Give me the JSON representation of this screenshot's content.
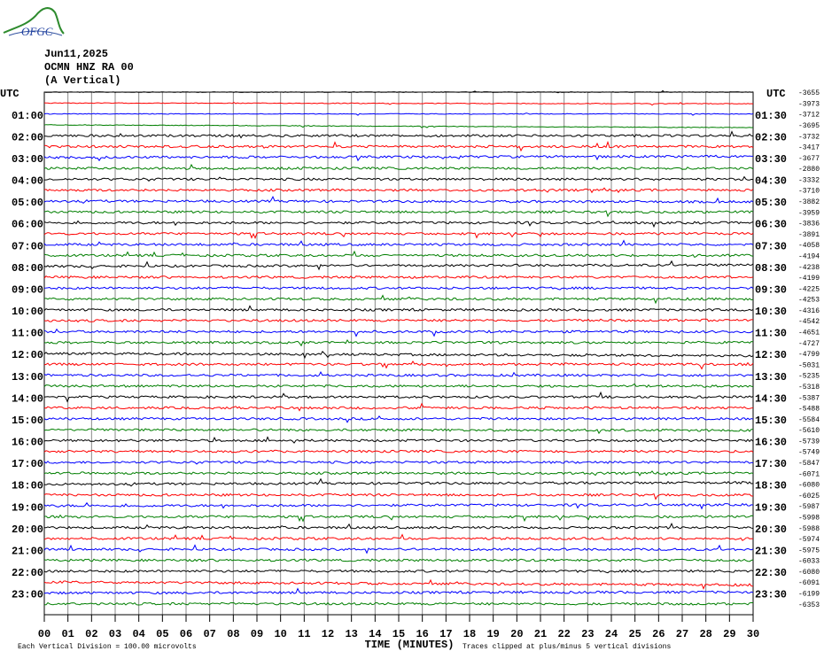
{
  "header": {
    "logo": "OFGC",
    "date": "Jun11,2025",
    "station": "OCMN HNZ RA 00",
    "component": "(A Vertical)"
  },
  "plot": {
    "utc_left": "UTC",
    "utc_right": "UTC",
    "left_labels": [
      "01:00",
      "02:00",
      "03:00",
      "04:00",
      "05:00",
      "06:00",
      "07:00",
      "08:00",
      "09:00",
      "10:00",
      "11:00",
      "12:00",
      "13:00",
      "14:00",
      "15:00",
      "16:00",
      "17:00",
      "18:00",
      "19:00",
      "20:00",
      "21:00",
      "22:00",
      "23:00"
    ],
    "right_labels": [
      "01:30",
      "02:30",
      "03:30",
      "04:30",
      "05:30",
      "06:30",
      "07:30",
      "08:30",
      "09:30",
      "10:30",
      "11:30",
      "12:30",
      "13:30",
      "14:30",
      "15:30",
      "16:30",
      "17:30",
      "18:30",
      "19:30",
      "20:30",
      "21:30",
      "22:30",
      "23:30"
    ],
    "offsets": [
      -3655,
      -3973,
      -3712,
      -3695,
      -3732,
      -3417,
      -3677,
      -2880,
      -3332,
      -3710,
      -3882,
      -3959,
      -3836,
      -3891,
      -4058,
      -4194,
      -4238,
      -4199,
      -4225,
      -4253,
      -4316,
      -4542,
      -4651,
      -4727,
      -4799,
      -5031,
      -5235,
      -5318,
      -5387,
      -5488,
      -5584,
      -5610,
      -5739,
      -5749,
      -5847,
      -6071,
      -6080,
      -6025,
      -5987,
      -5998,
      -5988,
      -5974,
      -5975,
      -6033,
      -6080,
      -6091,
      -6199,
      -6353
    ],
    "trace_colors": [
      "#000000",
      "#ff0000",
      "#0000ff",
      "#007f00"
    ],
    "x_ticks": [
      "00",
      "01",
      "02",
      "03",
      "04",
      "05",
      "06",
      "07",
      "08",
      "09",
      "10",
      "11",
      "12",
      "13",
      "14",
      "15",
      "16",
      "17",
      "18",
      "19",
      "20",
      "21",
      "22",
      "23",
      "24",
      "25",
      "26",
      "27",
      "28",
      "29",
      "30"
    ],
    "x_label": "TIME (MINUTES)"
  },
  "footer": {
    "scale": "Each Vertical Division =  100.00 microvolts",
    "clip": "Traces clipped at plus/minus 5 vertical divisions"
  }
}
